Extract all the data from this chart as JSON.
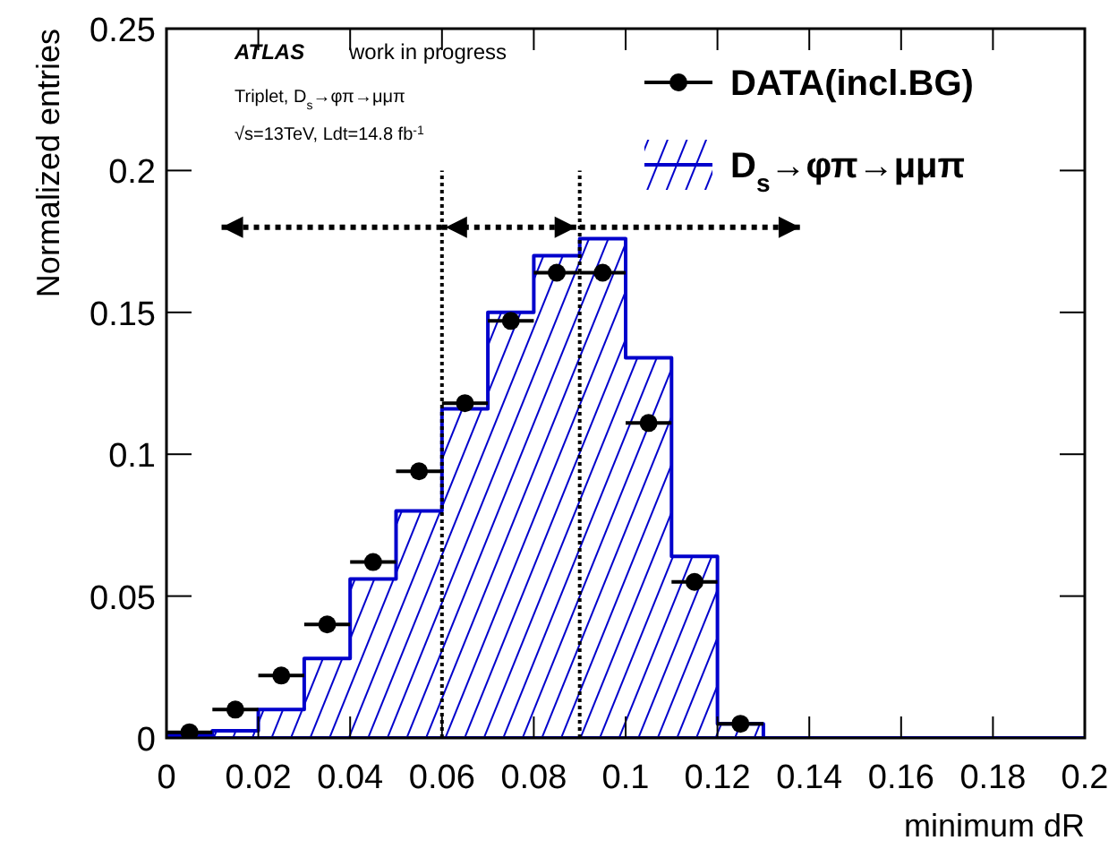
{
  "chart_data": {
    "type": "histogram",
    "xlabel": "minimum dR",
    "ylabel": "Normalized entries",
    "annotations": [
      "ATLAS",
      "work in progress",
      "Triplet, D$_{s}$→φπ→μμπ",
      "√s=13TeV, Ldt=14.8 fb$^{-1}$"
    ],
    "bins": [
      0,
      0.01,
      0.02,
      0.03,
      0.04,
      0.05,
      0.06,
      0.07,
      0.08,
      0.09,
      0.1,
      0.11,
      0.12,
      0.13,
      0.14,
      0.15,
      0.16,
      0.17,
      0.18,
      0.19,
      0.2
    ],
    "series": [
      {
        "name": "D$_{s}$→φπ→μμπ",
        "color": "#0000cc",
        "values": [
          0.001,
          0.0025,
          0.01,
          0.028,
          0.056,
          0.08,
          0.116,
          0.15,
          0.17,
          0.176,
          0.134,
          0.064,
          0.005,
          0,
          0,
          0,
          0,
          0,
          0,
          0
        ]
      },
      {
        "name": "DATA(incl.BG)",
        "type": "scatter",
        "color": "#000000",
        "x": [
          0.005,
          0.015,
          0.025,
          0.035,
          0.045,
          0.055,
          0.065,
          0.075,
          0.085,
          0.095,
          0.105,
          0.115,
          0.125
        ],
        "values": [
          0.002,
          0.01,
          0.022,
          0.04,
          0.062,
          0.094,
          0.118,
          0.147,
          0.164,
          0.164,
          0.111,
          0.055,
          0.005
        ],
        "xerrors": [
          0.005,
          0.005,
          0.005,
          0.005,
          0.005,
          0.005,
          0.005,
          0.005,
          0.005,
          0.005,
          0.005,
          0.005,
          0.005
        ]
      }
    ],
    "xlim": [
      0,
      0.2
    ],
    "xticks": [
      0,
      0.02,
      0.04,
      0.06,
      0.08,
      0.1,
      0.12,
      0.14,
      0.16,
      0.18,
      0.2
    ],
    "ylim": [
      0,
      0.25
    ],
    "yticks": [
      0,
      0.05,
      0.1,
      0.15,
      0.2,
      0.25
    ],
    "ref_lines": [
      {
        "axis": "x",
        "value": 0.06,
        "line_style": "dotted",
        "color": "#000000"
      },
      {
        "axis": "x",
        "value": 0.09,
        "line_style": "dotted",
        "color": "#000000"
      }
    ],
    "legend": "top right",
    "marker": "circle",
    "grid": false
  }
}
